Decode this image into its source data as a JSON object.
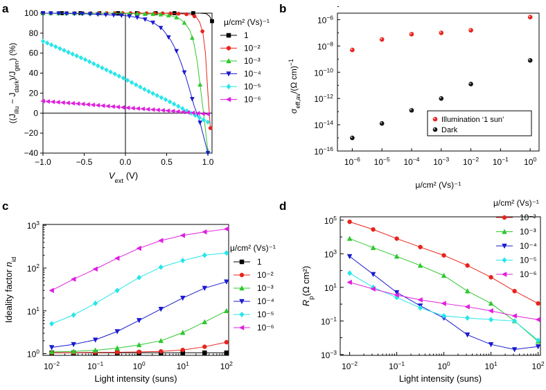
{
  "figure": {
    "panel_labels": [
      "a",
      "b",
      "c",
      "d"
    ]
  },
  "colors": {
    "1": "#000000",
    "1e-2": "#e8231c",
    "1e-3": "#2ec82e",
    "1e-4": "#1a1ad0",
    "1e-5": "#27e6ea",
    "1e-6": "#e01ee0",
    "axis": "#000000"
  },
  "chart_data": [
    {
      "panel": "a",
      "type": "line",
      "xlabel_main": "V",
      "xlabel_sub": "ext",
      "xlabel_unit": " (V)",
      "ylabel_parts": [
        "((J",
        "illu",
        " − J",
        "dark",
        ")/J",
        "gen",
        ") (%)"
      ],
      "xlim": [
        -1.0,
        1.05
      ],
      "ylim": [
        -40,
        100
      ],
      "xticks": [
        -1.0,
        -0.5,
        0.0,
        0.5,
        1.0
      ],
      "xtick_labels": [
        "−1.0",
        "−0.5",
        "0.0",
        "0.5",
        "1.0"
      ],
      "yticks": [
        -40,
        -20,
        0,
        20,
        40,
        60,
        80,
        100
      ],
      "ytick_labels": [
        "−40",
        "−20",
        "0",
        "20",
        "40",
        "60",
        "80",
        "100"
      ],
      "legend_title": "μ/cm² (Vs)⁻¹",
      "series": [
        {
          "key": "1",
          "name": "1",
          "marker": "square",
          "x": [
            -1.0,
            -0.5,
            0.0,
            0.5,
            0.9,
            0.98,
            1.02,
            1.05
          ],
          "y": [
            100,
            100,
            100,
            100,
            100,
            99.5,
            97,
            92
          ]
        },
        {
          "key": "1e-2",
          "name": "10⁻²",
          "marker": "circle",
          "x": [
            -1.0,
            -0.5,
            0.0,
            0.5,
            0.7,
            0.8,
            0.86,
            0.9,
            0.94,
            0.97,
            1.0,
            1.03
          ],
          "y": [
            100,
            100,
            100,
            99.8,
            99.3,
            98.3,
            96,
            91,
            80,
            60,
            20,
            -15
          ]
        },
        {
          "key": "1e-3",
          "name": "10⁻³",
          "marker": "triangle-up",
          "x": [
            -1.0,
            -0.5,
            0.0,
            0.4,
            0.55,
            0.65,
            0.72,
            0.78,
            0.83,
            0.87,
            0.91,
            0.95,
            1.0
          ],
          "y": [
            100,
            99.9,
            99.7,
            99,
            97.5,
            95,
            90,
            83,
            70,
            52,
            25,
            -2,
            -38
          ]
        },
        {
          "key": "1e-4",
          "name": "10⁻⁴",
          "marker": "triangle-down",
          "x": [
            -1.0,
            -0.5,
            0.0,
            0.2,
            0.35,
            0.45,
            0.55,
            0.62,
            0.68,
            0.73,
            0.78,
            0.83,
            0.9,
            1.0
          ],
          "y": [
            100,
            99.4,
            97.5,
            95,
            90,
            84,
            73,
            62,
            49,
            37,
            23,
            8,
            -8,
            -40
          ]
        },
        {
          "key": "1e-5",
          "name": "10⁻⁵",
          "marker": "diamond",
          "x": [
            -1.0,
            -0.75,
            -0.5,
            -0.25,
            0.0,
            0.25,
            0.5,
            0.75,
            1.0
          ],
          "y": [
            72,
            63,
            54,
            44,
            34,
            23,
            13,
            2,
            -9
          ]
        },
        {
          "key": "1e-6",
          "name": "10⁻⁶",
          "marker": "triangle-left",
          "x": [
            -1.0,
            -0.5,
            0.0,
            0.5,
            1.0
          ],
          "y": [
            12,
            9,
            5.5,
            2.5,
            -1
          ]
        }
      ]
    },
    {
      "panel": "b",
      "type": "scatter",
      "ylabel": "σeff,av/(Ω cm)⁻¹",
      "ylabel_parts": [
        "σ",
        "eff,av",
        "/(Ω cm)",
        "−1"
      ],
      "xlabel": "μ/cm² (Vs)⁻¹",
      "x_log_exponents": [
        -6,
        -5,
        -4,
        -3,
        -2,
        -1,
        0
      ],
      "y_log_exponents": [
        -16,
        -14,
        -12,
        -10,
        -8,
        -6
      ],
      "xlim_log": [
        -6.5,
        0.3
      ],
      "ylim_log": [
        -16,
        -5.5
      ],
      "series": [
        {
          "name": "Illumination ‘1 sun’",
          "marker": "sphere-red",
          "x_log": [
            -6,
            -5,
            -4,
            -3,
            -2,
            0
          ],
          "y_log": [
            -8.3,
            -7.5,
            -7.1,
            -7.0,
            -6.8,
            -5.8
          ]
        },
        {
          "name": "Dark",
          "marker": "sphere-black",
          "x_log": [
            -6,
            -5,
            -4,
            -3,
            -2,
            0
          ],
          "y_log": [
            -15.0,
            -13.9,
            -12.9,
            -12.0,
            -10.9,
            -9.1
          ]
        }
      ]
    },
    {
      "panel": "c",
      "type": "line",
      "xlabel": "Light intensity (suns)",
      "ylabel_text": "Ideality factor ",
      "ylabel_n": "n",
      "ylabel_sub": "id",
      "x_log_exponents": [
        -2,
        -1,
        0,
        1,
        2
      ],
      "y_log_exponents": [
        0,
        1,
        2,
        3
      ],
      "xlim_log": [
        -2.2,
        2.05
      ],
      "ylim_log": [
        -0.04,
        3.02
      ],
      "legend_title": "μ/cm² (Vs)⁻¹",
      "x_log": [
        -2.0,
        -1.5,
        -1.0,
        -0.5,
        0.0,
        0.5,
        1.0,
        1.5,
        2.0
      ],
      "series": [
        {
          "key": "1",
          "name": "1",
          "marker": "square",
          "y": [
            1.05,
            1.05,
            1.05,
            1.05,
            1.05,
            1.05,
            1.05,
            1.05,
            1.05
          ]
        },
        {
          "key": "1e-2",
          "name": "10⁻²",
          "marker": "circle",
          "y": [
            1.05,
            1.06,
            1.07,
            1.08,
            1.1,
            1.13,
            1.22,
            1.45,
            1.85
          ]
        },
        {
          "key": "1e-3",
          "name": "10⁻³",
          "marker": "triangle-up",
          "y": [
            1.1,
            1.13,
            1.2,
            1.35,
            1.6,
            2.0,
            3.1,
            5.5,
            10
          ]
        },
        {
          "key": "1e-4",
          "name": "10⁻⁴",
          "marker": "triangle-down",
          "y": [
            1.4,
            1.65,
            2.1,
            3.3,
            6,
            11,
            20,
            34,
            48
          ]
        },
        {
          "key": "1e-5",
          "name": "10⁻⁵",
          "marker": "diamond",
          "y": [
            5,
            8,
            15,
            30,
            60,
            105,
            150,
            200,
            225
          ]
        },
        {
          "key": "1e-6",
          "name": "10⁻⁶",
          "marker": "triangle-left",
          "y": [
            30,
            55,
            95,
            170,
            290,
            440,
            580,
            700,
            820
          ]
        }
      ]
    },
    {
      "panel": "d",
      "type": "line",
      "xlabel": "Light intensity (suns)",
      "ylabel_parts": [
        "R",
        "p",
        "(Ω cm²)"
      ],
      "x_log_exponents": [
        -2,
        -1,
        0,
        1,
        2
      ],
      "y_log_exponents": [
        -3,
        -1,
        1,
        3,
        5
      ],
      "xlim_log": [
        -2.2,
        2.05
      ],
      "ylim_log": [
        -3.05,
        5.2
      ],
      "legend_title": "μ/cm² (Vs)⁻¹",
      "x_log": [
        -2.0,
        -1.5,
        -1.0,
        -0.5,
        0.0,
        0.5,
        1.0,
        1.5,
        2.0
      ],
      "series": [
        {
          "key": "1e-2",
          "name": "10⁻²",
          "marker": "circle",
          "y": [
            80000,
            28000,
            8000,
            2500,
            800,
            200,
            40,
            6,
            1.1
          ]
        },
        {
          "key": "1e-3",
          "name": "10⁻³",
          "marker": "triangle-up",
          "y": [
            8000,
            2300,
            700,
            200,
            50,
            6,
            1.1,
            0.1,
            0.006
          ]
        },
        {
          "key": "1e-4",
          "name": "10⁻⁴",
          "marker": "triangle-down",
          "y": [
            700,
            60,
            5,
            0.8,
            0.15,
            0.015,
            0.004,
            0.002,
            0.003
          ]
        },
        {
          "key": "1e-5",
          "name": "10⁻⁵",
          "marker": "diamond",
          "y": [
            70,
            10,
            2.5,
            0.6,
            0.2,
            0.15,
            0.12,
            0.1,
            0.007
          ]
        },
        {
          "key": "1e-6",
          "name": "10⁻⁶",
          "marker": "triangle-left",
          "y": [
            20,
            8,
            3.5,
            1.8,
            1.1,
            0.7,
            0.4,
            0.2,
            0.12
          ]
        }
      ]
    }
  ]
}
